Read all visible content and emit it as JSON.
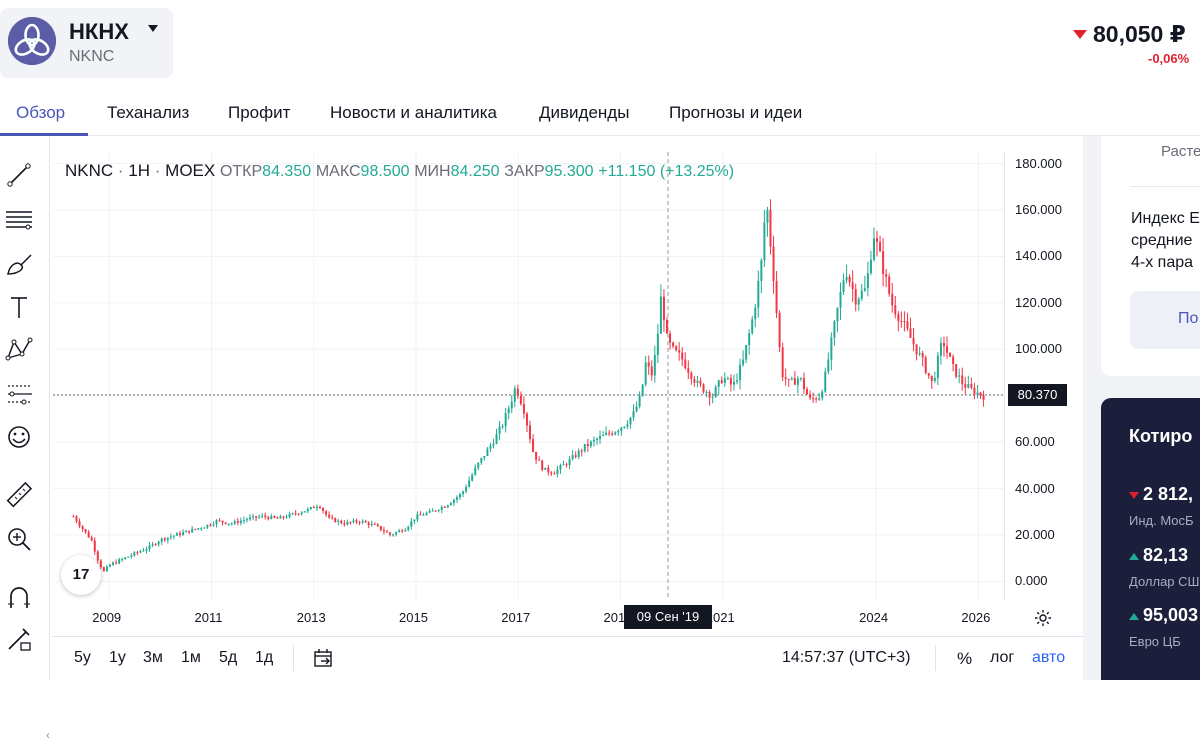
{
  "header": {
    "ticker": "НКНХ",
    "isin_short": "NKNC",
    "price": "80,050 ₽",
    "change": "-0,06%"
  },
  "tabs": [
    "Обзор",
    "Теханализ",
    "Профит",
    "Новости и аналитика",
    "Дивиденды",
    "Прогнозы и идеи"
  ],
  "legend": {
    "symbol": "NKNC",
    "interval": "1H",
    "exchange": "MOEX",
    "open_label": "ОТКР",
    "open": "84.350",
    "high_label": "МАКС",
    "high": "98.500",
    "low_label": "МИН",
    "low": "84.250",
    "close_label": "ЗАКР",
    "close": "95.300",
    "change": "+11.150 (+13.25%)"
  },
  "tv_logo": "17",
  "chart_data": {
    "type": "line",
    "title": "",
    "xlabel": "",
    "ylabel": "",
    "ylim": [
      -8,
      185
    ],
    "y_ticks": [
      "180.000",
      "160.000",
      "140.000",
      "120.000",
      "100.000",
      "80.000",
      "60.000",
      "40.000",
      "20.000",
      "0.000"
    ],
    "x_ticks": [
      "2009",
      "2011",
      "2013",
      "2015",
      "2017",
      "2019",
      "2021",
      "2024",
      "2026"
    ],
    "current_price": "80.370",
    "crosshair_date": "09 Сен '19",
    "colors": {
      "up": "#22ab94",
      "down": "#f23645"
    },
    "series": [
      {
        "x": [
          2008.3,
          2008.5,
          2008.65,
          2008.8,
          2008.9,
          2009.0,
          2009.2,
          2009.5,
          2009.8,
          2010.0,
          2010.3,
          2010.6,
          2010.9,
          2011.1,
          2011.4,
          2011.7,
          2012.0,
          2012.3,
          2012.6,
          2012.9,
          2013.1,
          2013.3,
          2013.6,
          2013.9,
          2014.2,
          2014.5,
          2014.8,
          2015.0,
          2015.3,
          2015.6,
          2015.9,
          2016.2,
          2016.5,
          2016.7,
          2016.85,
          2016.95,
          2017.1,
          2017.3,
          2017.5,
          2017.7,
          2018.0,
          2018.3,
          2018.6,
          2018.9,
          2019.1,
          2019.25,
          2019.4,
          2019.5,
          2019.6,
          2019.7,
          2019.8,
          2019.9,
          2020.0,
          2020.2,
          2020.5,
          2020.8,
          2021.0,
          2021.2,
          2021.4,
          2021.6,
          2021.75,
          2021.85,
          2022.0,
          2022.15,
          2022.3,
          2022.5,
          2022.7,
          2022.9,
          2023.0,
          2023.2,
          2023.4,
          2023.6,
          2023.8,
          2023.95,
          2024.1,
          2024.3,
          2024.6,
          2024.9,
          2025.1,
          2025.3,
          2025.5,
          2025.7,
          2025.9,
          2026.1
        ],
        "y": [
          28,
          22,
          18,
          8,
          4,
          7,
          9,
          12,
          15,
          18,
          20,
          22,
          24,
          26,
          25,
          27,
          28,
          27,
          29,
          31,
          33,
          27,
          25,
          26,
          24,
          20,
          23,
          28,
          30,
          33,
          38,
          50,
          60,
          68,
          77,
          84,
          75,
          55,
          48,
          47,
          52,
          58,
          62,
          65,
          68,
          72,
          80,
          95,
          88,
          100,
          124,
          105,
          100,
          96,
          85,
          80,
          88,
          84,
          95,
          115,
          136,
          165,
          130,
          90,
          85,
          88,
          78,
          80,
          88,
          112,
          135,
          122,
          126,
          150,
          138,
          120,
          108,
          95,
          85,
          104,
          92,
          85,
          82,
          80
        ]
      }
    ]
  },
  "bottom_bar": {
    "ranges": [
      "5y",
      "1y",
      "3м",
      "1м",
      "5д",
      "1д"
    ],
    "clock": "14:57:37 (UTC+3)",
    "pct": "%",
    "log": "лог",
    "auto": "авто"
  },
  "right_panel": {
    "top_label": "Расте",
    "info_lines": [
      "Индекс Е",
      "средние",
      "4-х пара"
    ],
    "button": "По",
    "quotes_title": "Котиро",
    "quotes": [
      {
        "value": "2 812,",
        "name": "Инд. МосБ",
        "dir": "down"
      },
      {
        "value": "82,13",
        "name": "Доллар СШ",
        "dir": "up"
      },
      {
        "value": "95,003",
        "name": "Евро ЦБ",
        "dir": "up"
      }
    ]
  }
}
